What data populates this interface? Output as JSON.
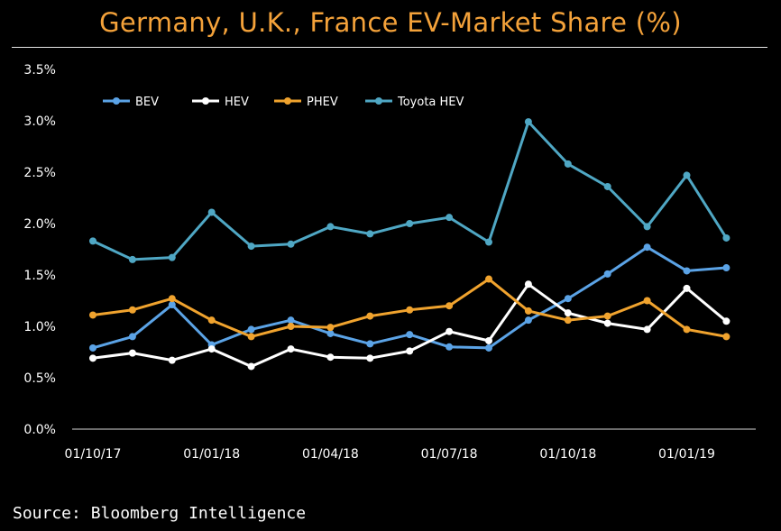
{
  "title": "Germany, U.K., France EV-Market Share (%)",
  "source": "Source: Bloomberg Intelligence",
  "chart_data": {
    "type": "line",
    "title": "Germany, U.K., France EV-Market Share (%)",
    "xlabel": "",
    "ylabel": "",
    "x": [
      "2017-10-01",
      "2017-11-01",
      "2017-12-01",
      "2018-01-01",
      "2018-02-01",
      "2018-03-01",
      "2018-04-01",
      "2018-05-01",
      "2018-06-01",
      "2018-07-01",
      "2018-08-01",
      "2018-09-01",
      "2018-10-01",
      "2018-11-01",
      "2018-12-01",
      "2019-01-01",
      "2019-02-01"
    ],
    "x_tick_labels": [
      "01/10/17",
      "01/01/18",
      "01/04/18",
      "01/07/18",
      "01/10/18",
      "01/01/19"
    ],
    "y_tick_labels": [
      "0.0%",
      "0.5%",
      "1.0%",
      "1.5%",
      "2.0%",
      "2.5%",
      "3.0%",
      "3.5%"
    ],
    "ylim": [
      0,
      3.5
    ],
    "grid": false,
    "legend_position": "top",
    "series": [
      {
        "name": "BEV",
        "color": "#5ba3e6",
        "values": [
          0.79,
          0.9,
          1.21,
          0.82,
          0.97,
          1.06,
          0.93,
          0.83,
          0.92,
          0.8,
          0.79,
          1.06,
          1.27,
          1.51,
          1.77,
          1.54,
          1.57
        ]
      },
      {
        "name": "HEV",
        "color": "#ffffff",
        "values": [
          0.69,
          0.74,
          0.67,
          0.78,
          0.61,
          0.78,
          0.7,
          0.69,
          0.76,
          0.95,
          0.86,
          1.41,
          1.13,
          1.03,
          0.97,
          1.37,
          1.05
        ]
      },
      {
        "name": "PHEV",
        "color": "#f0a32e",
        "values": [
          1.11,
          1.16,
          1.27,
          1.06,
          0.9,
          1.0,
          0.99,
          1.1,
          1.16,
          1.2,
          1.46,
          1.15,
          1.06,
          1.1,
          1.25,
          0.97,
          0.9
        ]
      },
      {
        "name": "Toyota HEV",
        "color": "#4fa7c4",
        "values": [
          1.83,
          1.65,
          1.67,
          2.11,
          1.78,
          1.8,
          1.97,
          1.9,
          2.0,
          2.06,
          1.82,
          2.99,
          2.58,
          2.36,
          1.97,
          2.47,
          1.86
        ]
      }
    ]
  }
}
